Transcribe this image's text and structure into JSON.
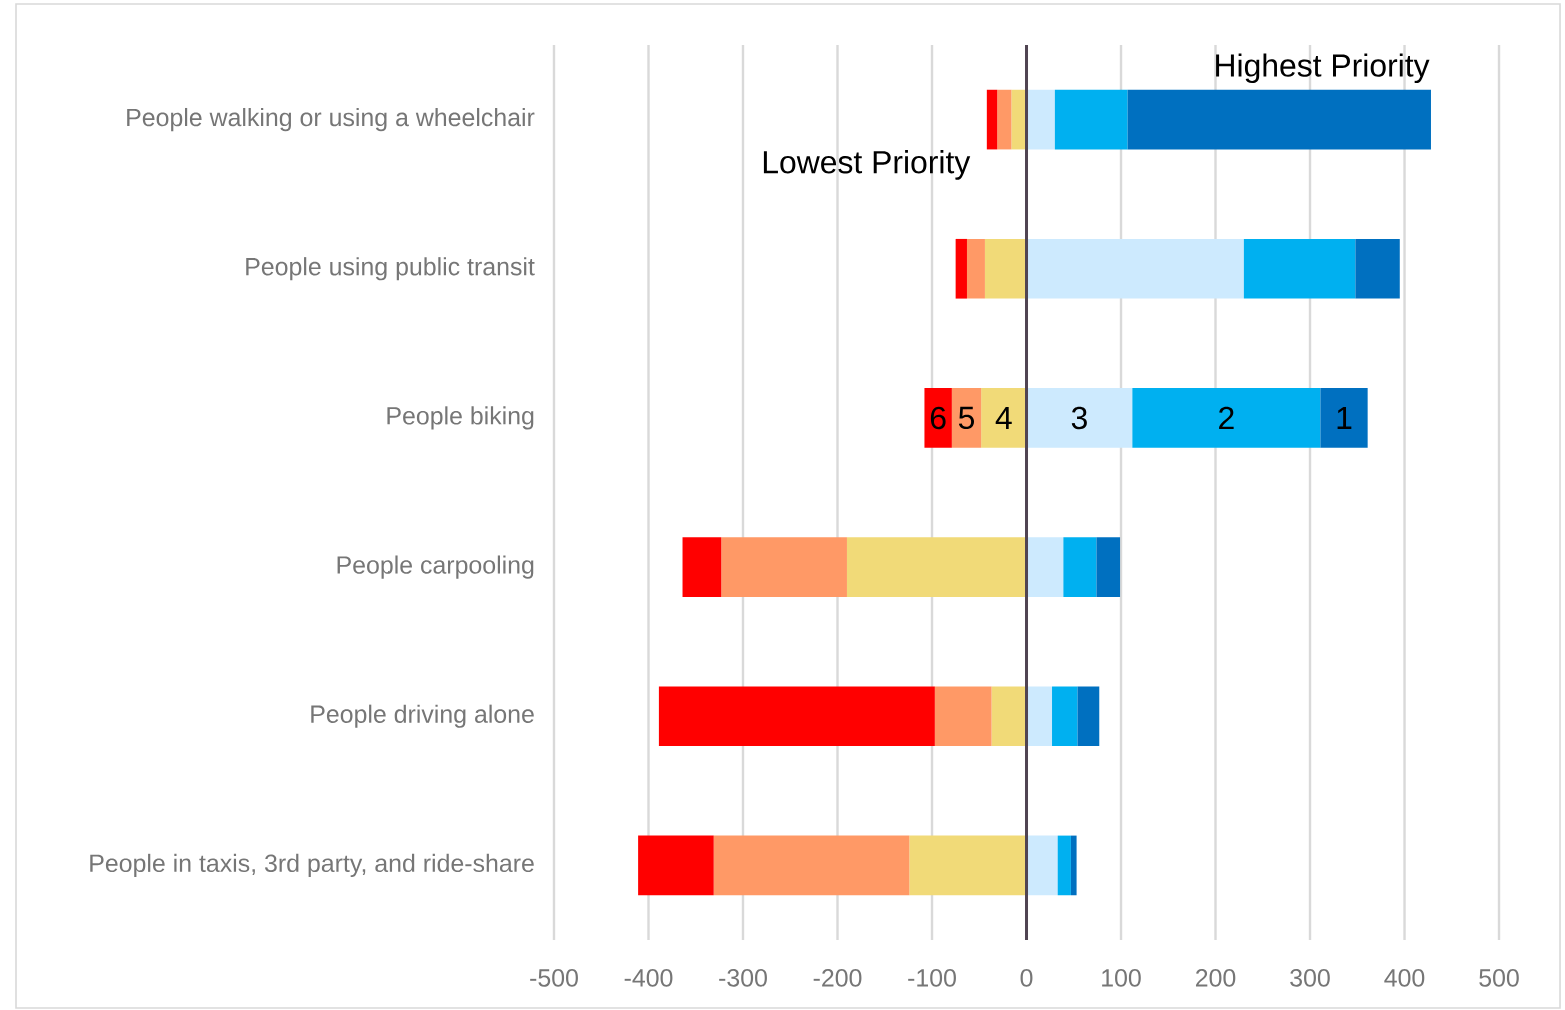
{
  "chart_data": {
    "type": "bar",
    "orientation": "horizontal",
    "stacked": true,
    "categories": [
      "People walking or using a wheelchair",
      "People using public transit",
      "People biking",
      "People carpooling",
      "People driving alone",
      "People in taxis, 3rd party, and ride-share"
    ],
    "series": [
      {
        "name": "3",
        "color": "#cdeafe",
        "values": [
          30,
          230,
          112,
          39,
          27,
          33
        ]
      },
      {
        "name": "2",
        "color": "#00b0f0",
        "values": [
          77,
          118,
          199,
          35,
          27,
          14
        ]
      },
      {
        "name": "1",
        "color": "#0070c0",
        "values": [
          321,
          47,
          50,
          25,
          23,
          6
        ]
      },
      {
        "name": "4",
        "color": "#f1da78",
        "values": [
          -16,
          -44,
          -48,
          -190,
          -37,
          -124
        ]
      },
      {
        "name": "5",
        "color": "#ff9966",
        "values": [
          -15,
          -19,
          -31,
          -133,
          -60,
          -207
        ]
      },
      {
        "name": "6",
        "color": "#ff0000",
        "values": [
          -11,
          -12,
          -29,
          -41,
          -292,
          -80
        ]
      }
    ],
    "xlim": [
      -500,
      500
    ],
    "xticks": [
      -500,
      -400,
      -300,
      -200,
      -100,
      0,
      100,
      200,
      300,
      400,
      500
    ],
    "grid": "x",
    "annotations": [
      "Highest Priority",
      "Lowest Priority"
    ]
  }
}
